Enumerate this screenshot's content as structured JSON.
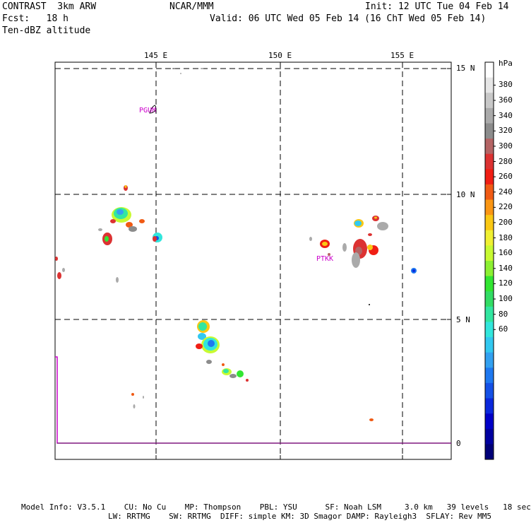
{
  "header": {
    "title": "CONTRAST  3km ARW",
    "org": "NCAR/MMM",
    "init": "Init: 12 UTC Tue 04 Feb 14",
    "fcst": "Fcst:   18 h",
    "valid": "Valid: 06 UTC Wed 05 Feb 14 (16 ChT Wed 05 Feb 14)",
    "field": "Ten-dBZ altitude"
  },
  "map": {
    "lon_labels": [
      "145 E",
      "150 E",
      "155 E"
    ],
    "lat_labels": [
      "15 N",
      "10 N",
      "5 N",
      "0"
    ],
    "stations": [
      {
        "name": "PGUM",
        "lon": 144.8,
        "lat": 13.5
      },
      {
        "name": "PTKK",
        "lon": 151.8,
        "lat": 7.5
      }
    ]
  },
  "colorbar": {
    "unit": "hPa",
    "tick_labels": [
      "380",
      "360",
      "340",
      "320",
      "300",
      "280",
      "260",
      "240",
      "220",
      "200",
      "180",
      "160",
      "140",
      "120",
      "100",
      "80",
      "60"
    ],
    "colors": [
      "#ffffff",
      "#e6e6e6",
      "#c8c8c8",
      "#aaaaaa",
      "#8c8c8c",
      "#b46464",
      "#dc3232",
      "#f01e14",
      "#f05a14",
      "#fa9614",
      "#fac814",
      "#f0f032",
      "#c8fa32",
      "#8cf032",
      "#32e632",
      "#32dc64",
      "#32e6a0",
      "#32e6dc",
      "#32c8f0",
      "#32a0f0",
      "#1e78f0",
      "#1450e6",
      "#0a28dc",
      "#0000c8",
      "#0000a0",
      "#000078"
    ]
  },
  "footer": {
    "line1": "Model Info: V3.5.1    CU: No Cu    MP: Thompson    PBL: YSU      SF: Noah LSM     3.0 km   39 levels   18 sec",
    "line2": "LW: RRTMG    SW: RRTMG  DIFF: simple KM: 3D Smagor DAMP: Rayleigh3  SFLAY: Rev MM5"
  }
}
